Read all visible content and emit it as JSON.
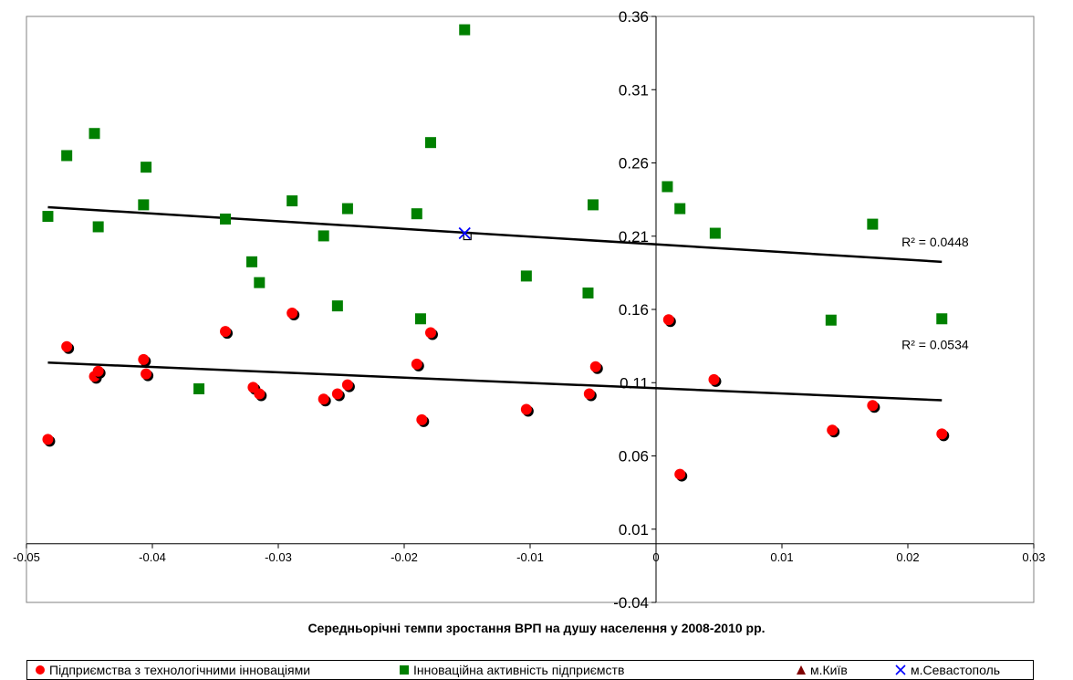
{
  "chart_data": {
    "type": "scatter",
    "title": "",
    "xlabel": "Середньорічні темпи зростання ВРП на душу населення у 2008-2010 рр.",
    "ylabel": "",
    "xlim": [
      -0.05,
      0.03
    ],
    "ylim": [
      -0.04,
      0.36
    ],
    "x_ticks": [
      "-0.05",
      "-0.04",
      "-0.03",
      "-0.02",
      "-0.01",
      "0",
      "0.01",
      "0.02",
      "0.03"
    ],
    "y_ticks": [
      "-0.04",
      "0.01",
      "0.06",
      "0.11",
      "0.16",
      "0.21",
      "0.26",
      "0.31",
      "0.36"
    ],
    "x_tick_values": [
      -0.05,
      -0.04,
      -0.03,
      -0.02,
      -0.01,
      0,
      0.01,
      0.02,
      0.03
    ],
    "y_tick_values": [
      -0.04,
      0.01,
      0.06,
      0.11,
      0.16,
      0.21,
      0.26,
      0.31,
      0.36
    ],
    "grid": false,
    "legend_position": "bottom",
    "series": [
      {
        "name": "Підприємства з технологічними інноваціями",
        "marker": "circle",
        "color": "#ff0000",
        "points": [
          [
            -0.0483,
            0.0713
          ],
          [
            -0.0468,
            0.1346
          ],
          [
            -0.0446,
            0.1143
          ],
          [
            -0.0443,
            0.1178
          ],
          [
            -0.0407,
            0.1258
          ],
          [
            -0.0405,
            0.116
          ],
          [
            -0.0342,
            0.145
          ],
          [
            -0.032,
            0.1068
          ],
          [
            -0.0315,
            0.1024
          ],
          [
            -0.0289,
            0.1575
          ],
          [
            -0.0264,
            0.0988
          ],
          [
            -0.0253,
            0.1024
          ],
          [
            -0.0245,
            0.1085
          ],
          [
            -0.019,
            0.1227
          ],
          [
            -0.0186,
            0.0847
          ],
          [
            -0.0179,
            0.1441
          ],
          [
            -0.0103,
            0.0918
          ],
          [
            -0.0053,
            0.1024
          ],
          [
            -0.0048,
            0.1209
          ],
          [
            0.001,
            0.153
          ],
          [
            0.0019,
            0.0475
          ],
          [
            0.0046,
            0.1121
          ],
          [
            0.014,
            0.0776
          ],
          [
            0.0172,
            0.0944
          ],
          [
            0.0227,
            0.075
          ]
        ]
      },
      {
        "name": "Інноваційна активність підприємств",
        "marker": "square",
        "color": "#008000",
        "points": [
          [
            -0.0483,
            0.2235
          ],
          [
            -0.0468,
            0.265
          ],
          [
            -0.0446,
            0.2801
          ],
          [
            -0.0443,
            0.2164
          ],
          [
            -0.0407,
            0.2314
          ],
          [
            -0.0405,
            0.2571
          ],
          [
            -0.0363,
            0.1058
          ],
          [
            -0.0342,
            0.2217
          ],
          [
            -0.0321,
            0.1925
          ],
          [
            -0.0315,
            0.1783
          ],
          [
            -0.0289,
            0.2341
          ],
          [
            -0.0264,
            0.2102
          ],
          [
            -0.0253,
            0.1624
          ],
          [
            -0.0245,
            0.2288
          ],
          [
            -0.019,
            0.2253
          ],
          [
            -0.0187,
            0.1536
          ],
          [
            -0.0179,
            0.2739
          ],
          [
            -0.0152,
            0.3509
          ],
          [
            -0.0103,
            0.1828
          ],
          [
            -0.0054,
            0.1712
          ],
          [
            -0.005,
            0.2314
          ],
          [
            0.0009,
            0.2438
          ],
          [
            0.0019,
            0.2288
          ],
          [
            0.0047,
            0.212
          ],
          [
            0.0139,
            0.1527
          ],
          [
            0.0172,
            0.2182
          ],
          [
            0.0227,
            0.1536
          ]
        ]
      },
      {
        "name": "м.Київ",
        "marker": "triangle",
        "color": "#800000",
        "points": []
      },
      {
        "name": "м.Севастополь",
        "marker": "x",
        "color": "#0000ff",
        "points": [
          [
            -0.0152,
            0.212
          ]
        ]
      }
    ],
    "trendlines": [
      {
        "series": "Інноваційна активність підприємств",
        "x": [
          -0.0483,
          0.0227
        ],
        "y": [
          0.2298,
          0.1925
        ],
        "label": "R² = 0.0448",
        "label_at": [
          0.0195,
          0.203
        ]
      },
      {
        "series": "Підприємства з технологічними інноваціями",
        "x": [
          -0.0483,
          0.0227
        ],
        "y": [
          0.1237,
          0.098
        ],
        "label": "R² = 0.0534",
        "label_at": [
          0.0195,
          0.133
        ]
      }
    ]
  }
}
